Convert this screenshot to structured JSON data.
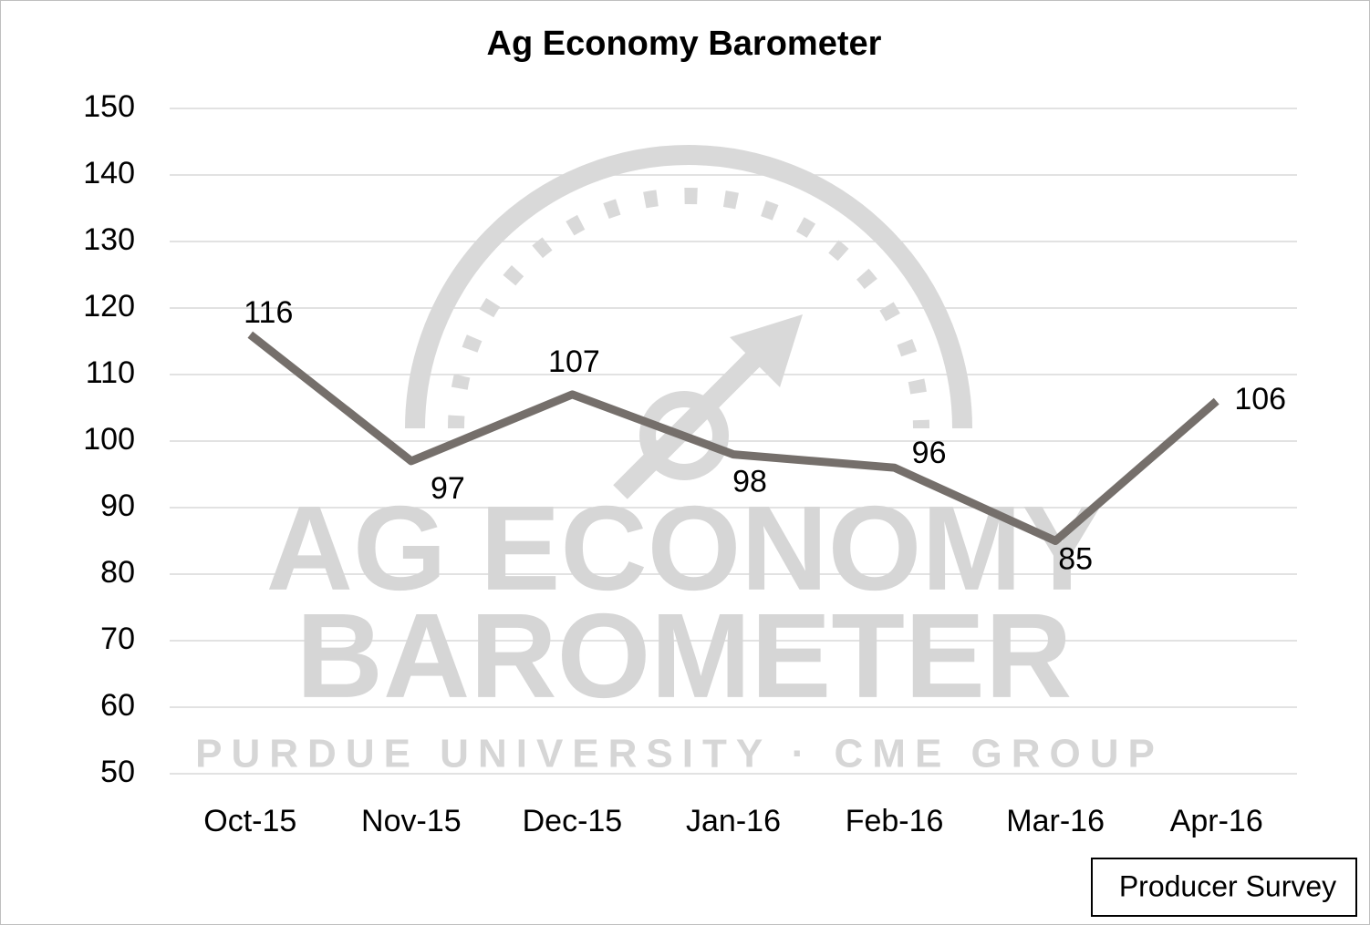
{
  "chart_data": {
    "type": "line",
    "title": "Ag Economy Barometer",
    "categories": [
      "Oct-15",
      "Nov-15",
      "Dec-15",
      "Jan-16",
      "Feb-16",
      "Mar-16",
      "Apr-16"
    ],
    "values": [
      116,
      97,
      107,
      98,
      96,
      85,
      106
    ],
    "color": "#756f6b",
    "ylim": [
      50,
      150
    ],
    "yticks": [
      50,
      60,
      70,
      80,
      90,
      100,
      110,
      120,
      130,
      140,
      150
    ],
    "grid": true,
    "annotation": "Producer Survey",
    "watermark": [
      "AG ECONOMY",
      "BAROMETER",
      "PURDUE UNIVERSITY · CME GROUP"
    ]
  }
}
